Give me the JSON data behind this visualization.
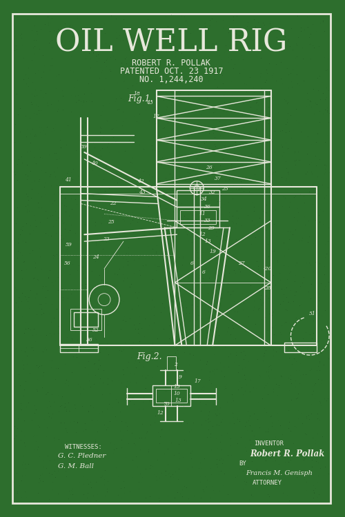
{
  "bg_color": "#2d6e2d",
  "line_color": "#e8e8dc",
  "border_color": "#d4d4c0",
  "title": "OIL WELL RIG",
  "title_fontsize": 32,
  "subtitle1": "ROBERT R. POLLAK",
  "subtitle2": "PATENTED OCT. 23 1917",
  "subtitle3": "NO. 1,244,240",
  "fig1_label": "Fig.1.",
  "fig2_label": "Fig.2.",
  "witnesses_label": "WITNESSES:",
  "witness1": "G. C. Pledner",
  "witness2": "G. M. Ball",
  "inventor_label": "INVENTOR",
  "inventor_name": "Robert R. Pollak",
  "by_label": "BY",
  "attorney_sig": "Francis M. Genisph",
  "attorney_label": "ATTORNEY",
  "lw": 1.0,
  "lw_thin": 0.6,
  "lw_thick": 1.5
}
